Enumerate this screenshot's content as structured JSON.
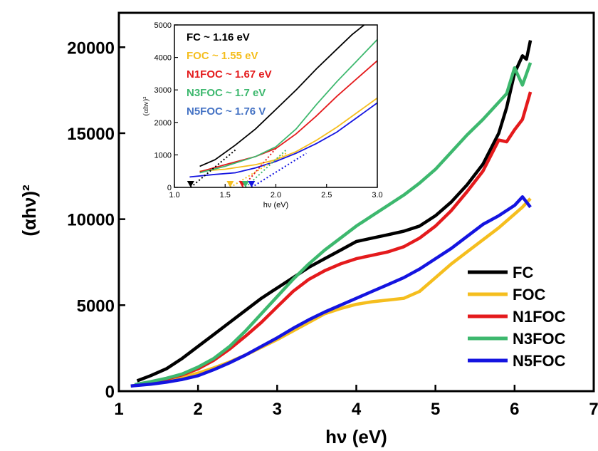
{
  "chart_data": [
    {
      "type": "line",
      "title": "",
      "xlabel": "hν (eV)",
      "ylabel": "(αhν)²",
      "xlim": [
        1,
        7
      ],
      "ylim": [
        0,
        22000
      ],
      "xticks": [
        1,
        2,
        3,
        4,
        5,
        6,
        7
      ],
      "yticks": [
        0,
        5000,
        10000,
        15000,
        20000
      ],
      "grid": false,
      "legend_position": "bottom-right",
      "series": [
        {
          "name": "FC",
          "color": "#000000",
          "points": [
            [
              1.23,
              600
            ],
            [
              1.4,
              900
            ],
            [
              1.6,
              1300
            ],
            [
              1.8,
              1900
            ],
            [
              2.0,
              2600
            ],
            [
              2.2,
              3300
            ],
            [
              2.4,
              4000
            ],
            [
              2.6,
              4700
            ],
            [
              2.8,
              5400
            ],
            [
              3.0,
              6000
            ],
            [
              3.2,
              6600
            ],
            [
              3.4,
              7200
            ],
            [
              3.6,
              7700
            ],
            [
              3.8,
              8200
            ],
            [
              4.0,
              8700
            ],
            [
              4.2,
              8900
            ],
            [
              4.4,
              9100
            ],
            [
              4.6,
              9300
            ],
            [
              4.8,
              9600
            ],
            [
              5.0,
              10200
            ],
            [
              5.2,
              11000
            ],
            [
              5.4,
              12000
            ],
            [
              5.6,
              13200
            ],
            [
              5.8,
              15000
            ],
            [
              5.9,
              16500
            ],
            [
              6.0,
              18500
            ],
            [
              6.1,
              19500
            ],
            [
              6.15,
              19300
            ],
            [
              6.2,
              20400
            ]
          ]
        },
        {
          "name": "FOC",
          "color": "#F5BE1E",
          "points": [
            [
              1.15,
              300
            ],
            [
              1.4,
              450
            ],
            [
              1.6,
              600
            ],
            [
              1.8,
              800
            ],
            [
              2.0,
              1050
            ],
            [
              2.2,
              1350
            ],
            [
              2.4,
              1700
            ],
            [
              2.6,
              2100
            ],
            [
              2.8,
              2550
            ],
            [
              3.0,
              3000
            ],
            [
              3.2,
              3500
            ],
            [
              3.4,
              4000
            ],
            [
              3.6,
              4500
            ],
            [
              3.8,
              4800
            ],
            [
              4.0,
              5050
            ],
            [
              4.2,
              5200
            ],
            [
              4.4,
              5300
            ],
            [
              4.6,
              5400
            ],
            [
              4.8,
              5800
            ],
            [
              5.0,
              6600
            ],
            [
              5.2,
              7400
            ],
            [
              5.4,
              8100
            ],
            [
              5.6,
              8800
            ],
            [
              5.8,
              9500
            ],
            [
              6.0,
              10300
            ],
            [
              6.1,
              10700
            ],
            [
              6.2,
              11200
            ]
          ]
        },
        {
          "name": "N1FOC",
          "color": "#E41A1C",
          "points": [
            [
              1.2,
              350
            ],
            [
              1.4,
              500
            ],
            [
              1.6,
              700
            ],
            [
              1.8,
              950
            ],
            [
              2.0,
              1300
            ],
            [
              2.2,
              1800
            ],
            [
              2.4,
              2450
            ],
            [
              2.6,
              3200
            ],
            [
              2.8,
              4000
            ],
            [
              3.0,
              4900
            ],
            [
              3.2,
              5800
            ],
            [
              3.4,
              6500
            ],
            [
              3.6,
              7000
            ],
            [
              3.8,
              7400
            ],
            [
              4.0,
              7700
            ],
            [
              4.2,
              7900
            ],
            [
              4.4,
              8100
            ],
            [
              4.6,
              8400
            ],
            [
              4.8,
              8900
            ],
            [
              5.0,
              9600
            ],
            [
              5.2,
              10500
            ],
            [
              5.4,
              11600
            ],
            [
              5.6,
              12800
            ],
            [
              5.8,
              14600
            ],
            [
              5.9,
              14500
            ],
            [
              6.0,
              15200
            ],
            [
              6.1,
              15800
            ],
            [
              6.2,
              17400
            ]
          ]
        },
        {
          "name": "N3FOC",
          "color": "#3DB86E",
          "points": [
            [
              1.2,
              380
            ],
            [
              1.4,
              550
            ],
            [
              1.6,
              750
            ],
            [
              1.8,
              1000
            ],
            [
              2.0,
              1400
            ],
            [
              2.2,
              1900
            ],
            [
              2.4,
              2600
            ],
            [
              2.6,
              3500
            ],
            [
              2.8,
              4500
            ],
            [
              3.0,
              5500
            ],
            [
              3.2,
              6500
            ],
            [
              3.4,
              7400
            ],
            [
              3.6,
              8200
            ],
            [
              3.8,
              8900
            ],
            [
              4.0,
              9600
            ],
            [
              4.2,
              10200
            ],
            [
              4.4,
              10800
            ],
            [
              4.6,
              11400
            ],
            [
              4.8,
              12100
            ],
            [
              5.0,
              12900
            ],
            [
              5.2,
              13900
            ],
            [
              5.4,
              14900
            ],
            [
              5.6,
              15800
            ],
            [
              5.8,
              16800
            ],
            [
              5.9,
              17300
            ],
            [
              6.0,
              18800
            ],
            [
              6.1,
              17800
            ],
            [
              6.2,
              19100
            ]
          ]
        },
        {
          "name": "N5FOC",
          "color": "#1414E0",
          "points": [
            [
              1.15,
              300
            ],
            [
              1.4,
              400
            ],
            [
              1.6,
              520
            ],
            [
              1.8,
              680
            ],
            [
              2.0,
              900
            ],
            [
              2.2,
              1250
            ],
            [
              2.4,
              1650
            ],
            [
              2.6,
              2100
            ],
            [
              2.8,
              2600
            ],
            [
              3.0,
              3100
            ],
            [
              3.2,
              3650
            ],
            [
              3.4,
              4150
            ],
            [
              3.6,
              4600
            ],
            [
              3.8,
              5000
            ],
            [
              4.0,
              5400
            ],
            [
              4.2,
              5800
            ],
            [
              4.4,
              6200
            ],
            [
              4.6,
              6600
            ],
            [
              4.8,
              7100
            ],
            [
              5.0,
              7700
            ],
            [
              5.2,
              8300
            ],
            [
              5.4,
              9000
            ],
            [
              5.6,
              9700
            ],
            [
              5.8,
              10200
            ],
            [
              6.0,
              10800
            ],
            [
              6.1,
              11300
            ],
            [
              6.2,
              10700
            ]
          ]
        }
      ]
    },
    {
      "type": "line",
      "title": "",
      "xlabel": "hν (eV)",
      "ylabel": "(αhν)²",
      "xlim": [
        1.0,
        3.0
      ],
      "ylim": [
        0,
        5000
      ],
      "xticks": [
        1.0,
        1.5,
        2.0,
        2.5,
        3.0
      ],
      "yticks": [
        0,
        1000,
        2000,
        3000,
        4000,
        5000
      ],
      "grid": false,
      "annotations": [
        {
          "label": "FC ~ 1.16 eV",
          "color": "#000000"
        },
        {
          "label": "FOC ~ 1.55 eV",
          "color": "#F5BE1E"
        },
        {
          "label": "N1FOC ~ 1.67 eV",
          "color": "#E41A1C"
        },
        {
          "label": "N3FOC ~ 1.7 eV",
          "color": "#3DB86E"
        },
        {
          "label": "N5FOC ~ 1.76 V",
          "color": "#4472C4"
        }
      ],
      "series": [
        {
          "color": "#000000",
          "points": [
            [
              1.25,
              650
            ],
            [
              1.4,
              850
            ],
            [
              1.6,
              1300
            ],
            [
              1.8,
              1800
            ],
            [
              2.0,
              2400
            ],
            [
              2.2,
              3000
            ],
            [
              2.4,
              3650
            ],
            [
              2.6,
              4250
            ],
            [
              2.75,
              4700
            ],
            [
              2.87,
              5000
            ]
          ],
          "fit": [
            [
              1.16,
              0
            ],
            [
              1.6,
              1150
            ]
          ]
        },
        {
          "color": "#F5BE1E",
          "points": [
            [
              1.25,
              500
            ],
            [
              1.5,
              560
            ],
            [
              1.8,
              700
            ],
            [
              2.0,
              850
            ],
            [
              2.2,
              1100
            ],
            [
              2.4,
              1450
            ],
            [
              2.6,
              1850
            ],
            [
              2.8,
              2300
            ],
            [
              3.0,
              2750
            ]
          ],
          "fit": [
            [
              1.55,
              0
            ],
            [
              2.1,
              1050
            ]
          ]
        },
        {
          "color": "#E41A1C",
          "points": [
            [
              1.25,
              480
            ],
            [
              1.5,
              700
            ],
            [
              1.8,
              950
            ],
            [
              2.0,
              1200
            ],
            [
              2.2,
              1650
            ],
            [
              2.4,
              2200
            ],
            [
              2.6,
              2800
            ],
            [
              2.8,
              3350
            ],
            [
              3.0,
              3900
            ]
          ],
          "fit": [
            [
              1.67,
              0
            ],
            [
              2.0,
              1200
            ]
          ]
        },
        {
          "color": "#3DB86E",
          "points": [
            [
              1.25,
              450
            ],
            [
              1.5,
              650
            ],
            [
              1.8,
              950
            ],
            [
              2.0,
              1250
            ],
            [
              2.2,
              1800
            ],
            [
              2.4,
              2550
            ],
            [
              2.6,
              3250
            ],
            [
              2.8,
              3900
            ],
            [
              3.0,
              4550
            ]
          ],
          "fit": [
            [
              1.7,
              0
            ],
            [
              2.1,
              1150
            ]
          ]
        },
        {
          "color": "#1414E0",
          "points": [
            [
              1.15,
              320
            ],
            [
              1.4,
              400
            ],
            [
              1.6,
              450
            ],
            [
              1.8,
              600
            ],
            [
              2.0,
              800
            ],
            [
              2.2,
              1050
            ],
            [
              2.4,
              1350
            ],
            [
              2.6,
              1700
            ],
            [
              2.8,
              2150
            ],
            [
              3.0,
              2600
            ]
          ],
          "fit": [
            [
              1.76,
              0
            ],
            [
              2.3,
              1050
            ]
          ]
        }
      ]
    }
  ]
}
